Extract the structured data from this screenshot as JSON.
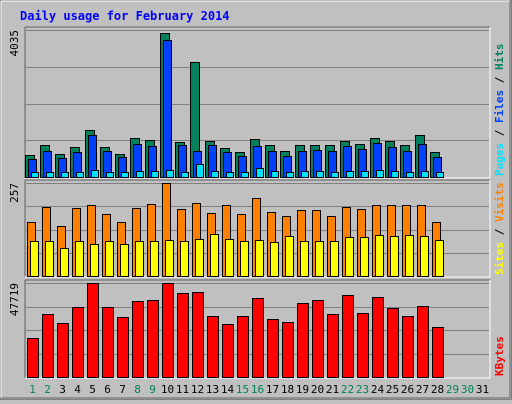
{
  "chart_data": {
    "type": "bar",
    "title": "Daily usage for February 2014",
    "x": [
      "1",
      "2",
      "3",
      "4",
      "5",
      "6",
      "7",
      "8",
      "9",
      "10",
      "11",
      "12",
      "13",
      "14",
      "15",
      "16",
      "17",
      "18",
      "19",
      "20",
      "21",
      "22",
      "23",
      "24",
      "25",
      "26",
      "27",
      "28",
      "29",
      "30",
      "31"
    ],
    "weekend_days": [
      "1",
      "2",
      "8",
      "9",
      "15",
      "16",
      "22",
      "23",
      "29",
      "30"
    ],
    "panels": [
      {
        "id": "hits",
        "ymax_label": "4035",
        "ylim": [
          0,
          4035
        ],
        "grid": true,
        "legend": [
          "Pages",
          "Files",
          "Hits"
        ],
        "legend_colors": [
          "#00e0ff",
          "#0040ff",
          "#00805c"
        ],
        "series": [
          {
            "name": "Hits",
            "color": "#00805c",
            "values": [
              600,
              880,
              620,
              820,
              1280,
              830,
              640,
              1070,
              1020,
              3950,
              950,
              3150,
              980,
              800,
              690,
              1050,
              880,
              720,
              880,
              880,
              870,
              980,
              900,
              1070,
              980,
              880,
              1150,
              690,
              0,
              0,
              0
            ]
          },
          {
            "name": "Files",
            "color": "#0040ff",
            "values": [
              500,
              720,
              520,
              680,
              1150,
              720,
              560,
              910,
              840,
              3750,
              880,
              700,
              880,
              690,
              590,
              860,
              720,
              580,
              710,
              740,
              710,
              840,
              760,
              920,
              810,
              720,
              900,
              560,
              0,
              0,
              0
            ]
          },
          {
            "name": "Pages",
            "color": "#00e0ff",
            "values": [
              140,
              150,
              140,
              150,
              200,
              150,
              140,
              170,
              160,
              200,
              150,
              370,
              160,
              150,
              140,
              250,
              160,
              150,
              160,
              160,
              150,
              170,
              160,
              180,
              160,
              150,
              170,
              150,
              0,
              0,
              0
            ]
          }
        ]
      },
      {
        "id": "visits",
        "ymax_label": "257",
        "ylim": [
          0,
          257
        ],
        "grid": true,
        "legend": [
          "Sites",
          "Visits"
        ],
        "legend_colors": [
          "#ffff00",
          "#ff8000"
        ],
        "series": [
          {
            "name": "Visits",
            "color": "#ff8000",
            "values": [
              150,
              190,
              137,
              187,
              197,
              170,
              150,
              187,
              200,
              257,
              185,
              202,
              175,
              197,
              170,
              215,
              178,
              166,
              183,
              183,
              165,
              190,
              186,
              195,
              197,
              197,
              197,
              148,
              0,
              0,
              0
            ]
          },
          {
            "name": "Sites",
            "color": "#ffff00",
            "values": [
              96,
              97,
              77,
              96,
              88,
              98,
              88,
              98,
              98,
              100,
              96,
              102,
              115,
              102,
              97,
              100,
              95,
              110,
              96,
              96,
              98,
              107,
              107,
              113,
              110,
              112,
              110,
              99,
              0,
              0,
              0
            ]
          }
        ]
      },
      {
        "id": "kbytes",
        "ymax_label": "47719",
        "ylim": [
          0,
          47719
        ],
        "grid": true,
        "legend": [
          "KBytes"
        ],
        "legend_colors": [
          "#ff0000"
        ],
        "series": [
          {
            "name": "KBytes",
            "color": "#ff0000",
            "values": [
              19700,
              32000,
              27300,
              35600,
              47500,
              35300,
              30500,
              38500,
              39100,
              47700,
              42800,
              43400,
              31000,
              26700,
              31200,
              40100,
              29200,
              27900,
              37500,
              38900,
              32200,
              41700,
              32500,
              40700,
              35000,
              31200,
              35900,
              25200,
              0,
              0,
              0
            ]
          }
        ]
      }
    ],
    "weekday_label_color": "#000000",
    "weekend_label_color": "#00805c",
    "title_color": "#0000ff",
    "plot_background": "#c0c0c0"
  }
}
